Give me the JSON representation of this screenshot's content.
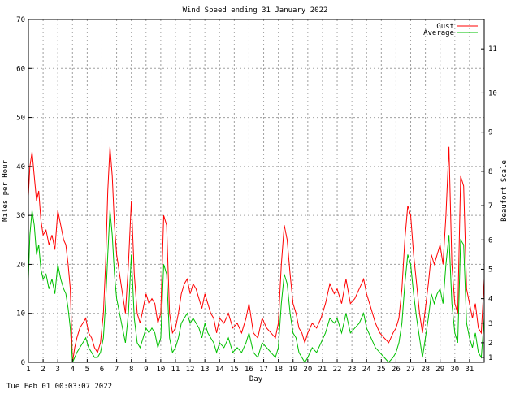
{
  "chart_data": {
    "type": "line",
    "title": "Wind Speed ending 31 January 2022",
    "xlabel": "Day",
    "ylabel": "Miles per Hour",
    "y2label": "Beaufort Scale",
    "footer": "Tue Feb 01 00:03:07 2022",
    "xlim": [
      1,
      32
    ],
    "ylim": [
      0,
      70
    ],
    "x_ticks": [
      1,
      2,
      3,
      4,
      5,
      6,
      7,
      8,
      9,
      10,
      11,
      12,
      13,
      14,
      15,
      16,
      17,
      18,
      19,
      20,
      21,
      22,
      23,
      24,
      25,
      26,
      27,
      28,
      29,
      30,
      31
    ],
    "y_ticks": [
      0,
      10,
      20,
      30,
      40,
      50,
      60,
      70
    ],
    "beaufort_ticks": [
      {
        "label": "1",
        "mph": 1
      },
      {
        "label": "2",
        "mph": 4
      },
      {
        "label": "3",
        "mph": 8
      },
      {
        "label": "4",
        "mph": 13
      },
      {
        "label": "5",
        "mph": 19
      },
      {
        "label": "6",
        "mph": 25
      },
      {
        "label": "7",
        "mph": 32
      },
      {
        "label": "8",
        "mph": 39
      },
      {
        "label": "9",
        "mph": 47
      },
      {
        "label": "10",
        "mph": 55
      },
      {
        "label": "11",
        "mph": 64
      }
    ],
    "grid": true,
    "legend_position": "top-right",
    "series": [
      {
        "name": "Gust",
        "color": "#ff0000",
        "x": [
          1.0,
          1.1,
          1.25,
          1.4,
          1.55,
          1.7,
          1.85,
          2.0,
          2.2,
          2.4,
          2.6,
          2.8,
          3.0,
          3.2,
          3.4,
          3.55,
          3.7,
          3.85,
          4.0,
          4.15,
          4.3,
          4.5,
          4.7,
          4.9,
          5.1,
          5.3,
          5.5,
          5.7,
          5.9,
          6.1,
          6.25,
          6.4,
          6.55,
          6.7,
          6.85,
          7.0,
          7.2,
          7.4,
          7.6,
          7.8,
          8.0,
          8.2,
          8.4,
          8.6,
          8.8,
          9.0,
          9.2,
          9.4,
          9.6,
          9.8,
          10.0,
          10.2,
          10.4,
          10.6,
          10.8,
          11.0,
          11.2,
          11.4,
          11.6,
          11.8,
          12.0,
          12.2,
          12.4,
          12.6,
          12.8,
          13.0,
          13.2,
          13.4,
          13.6,
          13.8,
          14.0,
          14.3,
          14.6,
          14.9,
          15.2,
          15.5,
          15.8,
          16.0,
          16.3,
          16.6,
          16.9,
          17.2,
          17.5,
          17.8,
          18.0,
          18.2,
          18.4,
          18.6,
          18.8,
          19.0,
          19.2,
          19.4,
          19.6,
          19.8,
          20.0,
          20.3,
          20.6,
          20.9,
          21.2,
          21.5,
          21.8,
          22.0,
          22.3,
          22.6,
          22.9,
          23.2,
          23.5,
          23.8,
          24.0,
          24.3,
          24.6,
          24.9,
          25.2,
          25.5,
          25.8,
          26.0,
          26.2,
          26.4,
          26.6,
          26.8,
          27.0,
          27.2,
          27.4,
          27.6,
          27.8,
          28.0,
          28.2,
          28.4,
          28.6,
          28.8,
          29.0,
          29.2,
          29.4,
          29.6,
          29.8,
          30.0,
          30.2,
          30.4,
          30.6,
          30.8,
          31.0,
          31.2,
          31.4,
          31.6,
          31.8,
          32.0
        ],
        "values": [
          34,
          40,
          43,
          38,
          33,
          35,
          29,
          26,
          27,
          24,
          26,
          23,
          31,
          28,
          25,
          24,
          20,
          15,
          0,
          3,
          5,
          7,
          8,
          9,
          6,
          5,
          3,
          2,
          4,
          10,
          20,
          35,
          44,
          38,
          28,
          22,
          18,
          14,
          10,
          20,
          33,
          18,
          10,
          8,
          11,
          14,
          12,
          13,
          12,
          8,
          10,
          30,
          28,
          10,
          6,
          7,
          10,
          14,
          16,
          17,
          14,
          16,
          15,
          13,
          11,
          14,
          12,
          10,
          9,
          6,
          9,
          8,
          10,
          7,
          8,
          6,
          9,
          12,
          6,
          5,
          9,
          7,
          6,
          5,
          8,
          20,
          28,
          25,
          18,
          12,
          10,
          7,
          6,
          4,
          6,
          8,
          7,
          9,
          12,
          16,
          14,
          15,
          12,
          17,
          12,
          13,
          15,
          17,
          14,
          11,
          8,
          6,
          5,
          4,
          6,
          7,
          9,
          15,
          25,
          32,
          30,
          22,
          16,
          10,
          6,
          11,
          16,
          22,
          20,
          22,
          24,
          20,
          30,
          44,
          20,
          12,
          10,
          38,
          36,
          15,
          12,
          9,
          12,
          7,
          6,
          17
        ]
      },
      {
        "name": "Average",
        "color": "#00c000",
        "x": [
          1.0,
          1.1,
          1.25,
          1.4,
          1.55,
          1.7,
          1.85,
          2.0,
          2.2,
          2.4,
          2.6,
          2.8,
          3.0,
          3.2,
          3.4,
          3.55,
          3.7,
          3.85,
          4.0,
          4.15,
          4.3,
          4.5,
          4.7,
          4.9,
          5.1,
          5.3,
          5.5,
          5.7,
          5.9,
          6.1,
          6.25,
          6.4,
          6.55,
          6.7,
          6.85,
          7.0,
          7.2,
          7.4,
          7.6,
          7.8,
          8.0,
          8.2,
          8.4,
          8.6,
          8.8,
          9.0,
          9.2,
          9.4,
          9.6,
          9.8,
          10.0,
          10.2,
          10.4,
          10.6,
          10.8,
          11.0,
          11.2,
          11.4,
          11.6,
          11.8,
          12.0,
          12.2,
          12.4,
          12.6,
          12.8,
          13.0,
          13.2,
          13.4,
          13.6,
          13.8,
          14.0,
          14.3,
          14.6,
          14.9,
          15.2,
          15.5,
          15.8,
          16.0,
          16.3,
          16.6,
          16.9,
          17.2,
          17.5,
          17.8,
          18.0,
          18.2,
          18.4,
          18.6,
          18.8,
          19.0,
          19.2,
          19.4,
          19.6,
          19.8,
          20.0,
          20.3,
          20.6,
          20.9,
          21.2,
          21.5,
          21.8,
          22.0,
          22.3,
          22.6,
          22.9,
          23.2,
          23.5,
          23.8,
          24.0,
          24.3,
          24.6,
          24.9,
          25.2,
          25.5,
          25.8,
          26.0,
          26.2,
          26.4,
          26.6,
          26.8,
          27.0,
          27.2,
          27.4,
          27.6,
          27.8,
          28.0,
          28.2,
          28.4,
          28.6,
          28.8,
          29.0,
          29.2,
          29.4,
          29.6,
          29.8,
          30.0,
          30.2,
          30.4,
          30.6,
          30.8,
          31.0,
          31.2,
          31.4,
          31.6,
          31.8,
          32.0
        ],
        "values": [
          17,
          26,
          31,
          28,
          22,
          24,
          19,
          17,
          18,
          15,
          17,
          14,
          20,
          17,
          15,
          14,
          11,
          7,
          0,
          1,
          2,
          3,
          4,
          5,
          3,
          2,
          1,
          1,
          2,
          5,
          12,
          22,
          31,
          26,
          18,
          13,
          10,
          7,
          4,
          10,
          22,
          9,
          4,
          3,
          5,
          7,
          6,
          7,
          6,
          3,
          5,
          20,
          18,
          5,
          2,
          3,
          5,
          8,
          9,
          10,
          8,
          9,
          8,
          7,
          5,
          8,
          6,
          5,
          4,
          2,
          4,
          3,
          5,
          2,
          3,
          2,
          4,
          6,
          2,
          1,
          4,
          3,
          2,
          1,
          3,
          12,
          18,
          16,
          10,
          6,
          5,
          2,
          1,
          0,
          1,
          3,
          2,
          4,
          6,
          9,
          8,
          9,
          6,
          10,
          6,
          7,
          8,
          10,
          7,
          5,
          3,
          2,
          1,
          0,
          1,
          2,
          4,
          8,
          16,
          22,
          20,
          14,
          9,
          5,
          1,
          5,
          9,
          14,
          12,
          14,
          15,
          12,
          20,
          26,
          12,
          6,
          4,
          25,
          24,
          8,
          5,
          3,
          6,
          2,
          1,
          9
        ]
      }
    ]
  }
}
